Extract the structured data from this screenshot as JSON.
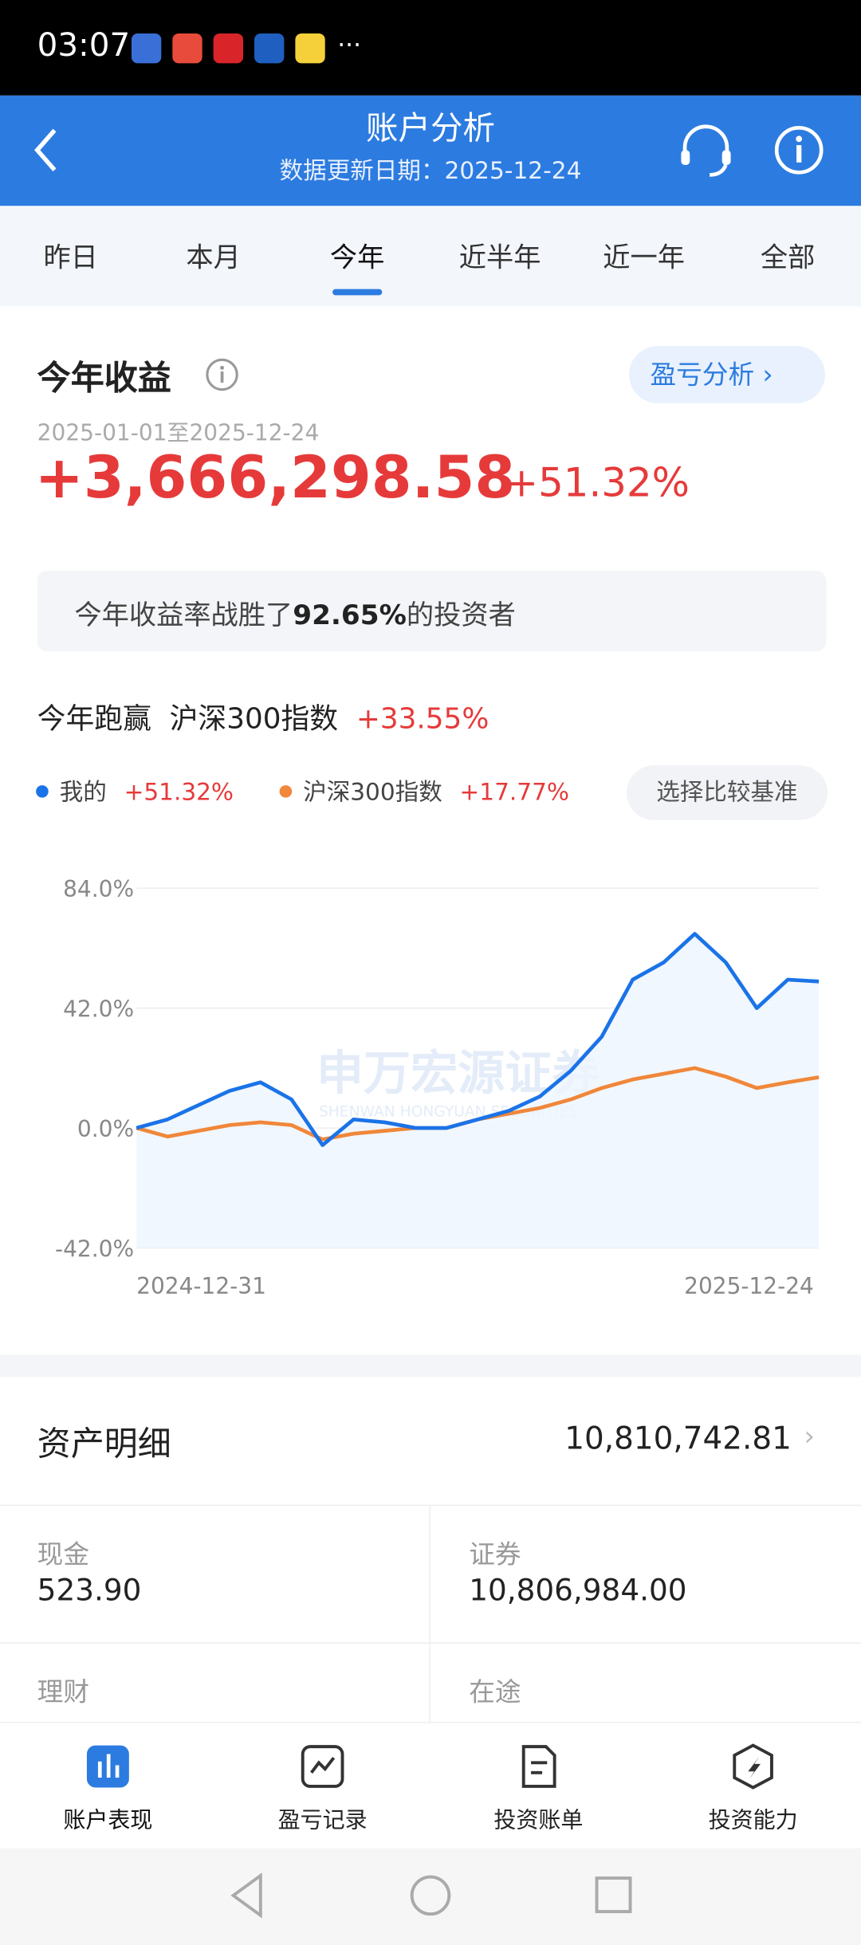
{
  "status_bar": {
    "time": "03:07"
  },
  "header": {
    "title": "账户分析",
    "subtitle": "数据更新日期：2025-12-24"
  },
  "tabs": [
    "昨日",
    "本月",
    "今年",
    "近半年",
    "近一年",
    "全部"
  ],
  "summary": {
    "title": "今年收益",
    "button": "盈亏分析",
    "date_range": "2025-01-01至2025-12-24",
    "profit": "+3,666,298.58",
    "return": "+51.32%",
    "beat_parts": [
      "今年收益率战胜了",
      "92.65%",
      "的投资者"
    ],
    "outperform_label": "今年跑赢",
    "benchmark": "沪深300指数",
    "outperform": "+33.55%",
    "compare_button": "选择比较基准"
  },
  "chart_data": {
    "type": "line",
    "categories": [
      "2024-12-31",
      null,
      null,
      null,
      null,
      null,
      null,
      null,
      null,
      null,
      null,
      null,
      null,
      null,
      null,
      null,
      null,
      null,
      null,
      null,
      null,
      null,
      "2025-12-24"
    ],
    "series": [
      {
        "name": "我的",
        "return": "+51.32%",
        "color": "#1a73e8",
        "values": [
          0,
          3,
          8,
          13,
          16,
          10,
          -6,
          3,
          2,
          0,
          0,
          3,
          6,
          11,
          20,
          32,
          52,
          58,
          68,
          58,
          42,
          52,
          51.32
        ]
      },
      {
        "name": "沪深300指数",
        "return": "+17.77%",
        "color": "#f0873a",
        "values": [
          0,
          -3,
          -1,
          1,
          2,
          1,
          -4,
          -2,
          -1,
          0,
          0,
          3,
          5,
          7,
          10,
          14,
          17,
          19,
          21,
          18,
          14,
          16,
          17.77
        ]
      }
    ],
    "ylim": [
      -42,
      84
    ],
    "yticks": [
      {
        "value": 84,
        "label": "84.0%"
      },
      {
        "value": 42,
        "label": "42.0%"
      },
      {
        "value": 0,
        "label": "0.0%"
      },
      {
        "value": -42,
        "label": "-42.0%"
      }
    ],
    "grid": true,
    "watermark": [
      "申万宏源证券",
      "SHENWAN HONGYUAN SECURITIES"
    ]
  },
  "assets": {
    "title": "资产明细",
    "total": "10,810,742.81",
    "items": [
      {
        "label": "现金",
        "value": "523.90"
      },
      {
        "label": "证券",
        "value": "10,806,984.00"
      },
      {
        "label": "理财"
      },
      {
        "label": "在途"
      }
    ]
  },
  "bottom_nav": [
    "账户表现",
    "盈亏记录",
    "投资账单",
    "投资能力"
  ]
}
